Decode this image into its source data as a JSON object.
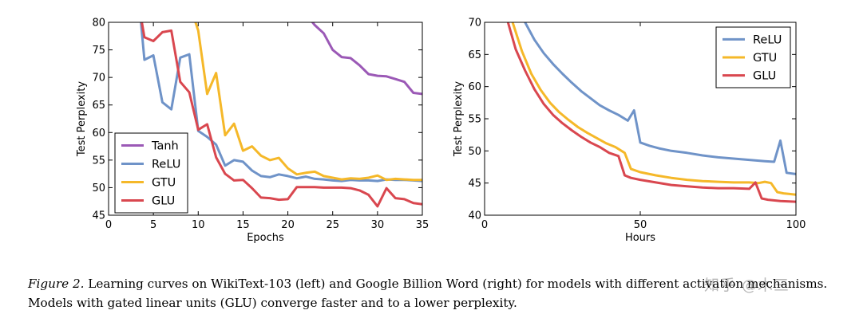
{
  "chart_data": [
    {
      "type": "line",
      "title": "",
      "xlabel": "Epochs",
      "ylabel": "Test Perplexity",
      "xlim": [
        0,
        35
      ],
      "ylim": [
        45,
        80
      ],
      "xticks": [
        "0",
        "5",
        "10",
        "15",
        "20",
        "25",
        "30",
        "35"
      ],
      "yticks": [
        "45",
        "50",
        "55",
        "60",
        "65",
        "70",
        "75",
        "80"
      ],
      "legend_position": "lower-left",
      "series": [
        {
          "name": "Tanh",
          "color": "#9b59b6",
          "x": [
            22.5,
            23,
            24,
            25,
            26,
            27,
            28,
            29,
            30,
            31,
            32,
            33,
            34,
            35
          ],
          "y": [
            80.5,
            79.5,
            78,
            75,
            73.7,
            73.5,
            72.2,
            70.6,
            70.3,
            70.2,
            69.7,
            69.2,
            67.2,
            67
          ]
        },
        {
          "name": "ReLU",
          "color": "#6f93c8",
          "x": [
            3.5,
            4,
            5,
            6,
            7,
            8,
            9,
            10,
            11,
            12,
            13,
            14,
            15,
            16,
            17,
            18,
            19,
            20,
            21,
            22,
            23,
            24,
            25,
            26,
            27,
            28,
            29,
            30,
            31,
            32,
            33,
            34,
            35
          ],
          "y": [
            82,
            73.2,
            74,
            65.5,
            64.2,
            73.6,
            74.2,
            60.3,
            59.2,
            57.8,
            54,
            55,
            54.7,
            53.1,
            52.1,
            51.9,
            52.4,
            52.1,
            51.7,
            52,
            51.6,
            51.5,
            51.3,
            51.2,
            51.4,
            51.3,
            51.3,
            51.2,
            51.5,
            51.4,
            51.4,
            51.3,
            51.2
          ]
        },
        {
          "name": "GTU",
          "color": "#f5b829",
          "x": [
            9.3,
            10,
            11,
            12,
            13,
            14,
            15,
            16,
            17,
            18,
            19,
            20,
            21,
            22,
            23,
            24,
            25,
            26,
            27,
            28,
            29,
            30,
            31,
            32,
            33,
            34,
            35
          ],
          "y": [
            82,
            78.5,
            67,
            70.8,
            59.5,
            61.6,
            56.7,
            57.5,
            55.8,
            55,
            55.4,
            53.5,
            52.4,
            52.7,
            52.9,
            52.1,
            51.8,
            51.5,
            51.7,
            51.6,
            51.8,
            52.2,
            51.4,
            51.6,
            51.5,
            51.4,
            51.4
          ]
        },
        {
          "name": "GLU",
          "color": "#d9474f",
          "x": [
            3.5,
            4,
            5,
            6,
            7,
            8,
            9,
            10,
            11,
            12,
            13,
            14,
            15,
            16,
            17,
            18,
            19,
            20,
            21,
            22,
            23,
            24,
            25,
            26,
            27,
            28,
            29,
            30,
            31,
            32,
            33,
            34,
            35
          ],
          "y": [
            82,
            77.3,
            76.6,
            78.2,
            78.5,
            69.2,
            67.3,
            60.5,
            61.5,
            55.5,
            52.5,
            51.3,
            51.4,
            49.9,
            48.2,
            48.1,
            47.8,
            47.9,
            50.1,
            50.1,
            50.1,
            50,
            50,
            50,
            49.9,
            49.5,
            48.7,
            46.6,
            49.9,
            48.1,
            47.9,
            47.2,
            47
          ]
        }
      ]
    },
    {
      "type": "line",
      "title": "",
      "xlabel": "Hours",
      "ylabel": "Test Perplexity",
      "xlim": [
        0,
        100
      ],
      "ylim": [
        40,
        70
      ],
      "xticks": [
        "0",
        "50",
        "100"
      ],
      "yticks": [
        "40",
        "45",
        "50",
        "55",
        "60",
        "65",
        "70"
      ],
      "legend_position": "upper-right",
      "series": [
        {
          "name": "ReLU",
          "color": "#6f93c8",
          "x": [
            13,
            16,
            19,
            22,
            25,
            28,
            31,
            34,
            37,
            40,
            43,
            46,
            48,
            50,
            53,
            56,
            60,
            65,
            70,
            75,
            80,
            85,
            90,
            93,
            95,
            97,
            100
          ],
          "y": [
            70,
            67.3,
            65.2,
            63.5,
            62,
            60.6,
            59.3,
            58.2,
            57.1,
            56.3,
            55.6,
            54.7,
            56.3,
            51.3,
            50.8,
            50.4,
            50,
            49.7,
            49.3,
            49,
            48.8,
            48.6,
            48.4,
            48.3,
            51.6,
            46.6,
            46.4
          ]
        },
        {
          "name": "GTU",
          "color": "#f5b829",
          "x": [
            9,
            12,
            15,
            18,
            21,
            24,
            27,
            30,
            33,
            36,
            39,
            42,
            45,
            47,
            50,
            55,
            60,
            65,
            70,
            75,
            80,
            85,
            88,
            90,
            92,
            94,
            96,
            98,
            100
          ],
          "y": [
            70,
            65.5,
            62,
            59.5,
            57.5,
            56,
            54.8,
            53.7,
            52.8,
            52,
            51.2,
            50.6,
            49.7,
            47.2,
            46.7,
            46.2,
            45.8,
            45.5,
            45.3,
            45.2,
            45.1,
            45.1,
            45,
            45.2,
            45,
            43.6,
            43.4,
            43.3,
            43.2
          ]
        },
        {
          "name": "GLU",
          "color": "#d9474f",
          "x": [
            7.5,
            10,
            13,
            16,
            19,
            22,
            25,
            28,
            31,
            34,
            37,
            40,
            43,
            45,
            47,
            50,
            55,
            60,
            65,
            70,
            75,
            80,
            85,
            87,
            89,
            91,
            95,
            100
          ],
          "y": [
            70,
            65.8,
            62.5,
            59.6,
            57.3,
            55.6,
            54.3,
            53.2,
            52.2,
            51.3,
            50.6,
            49.7,
            49.2,
            46.2,
            45.8,
            45.5,
            45.1,
            44.7,
            44.5,
            44.3,
            44.2,
            44.2,
            44.1,
            45.1,
            42.6,
            42.4,
            42.2,
            42.1
          ]
        }
      ]
    }
  ],
  "caption": {
    "figure_label": "Figure 2.",
    "line1": "Learning curves on WikiText-103 (left) and Google Billion Word (right) for models with different activation mechanisms.",
    "line2": "Models with gated linear units (GLU) converge faster and to a lower perplexity."
  },
  "watermark": "知乎 @木三"
}
